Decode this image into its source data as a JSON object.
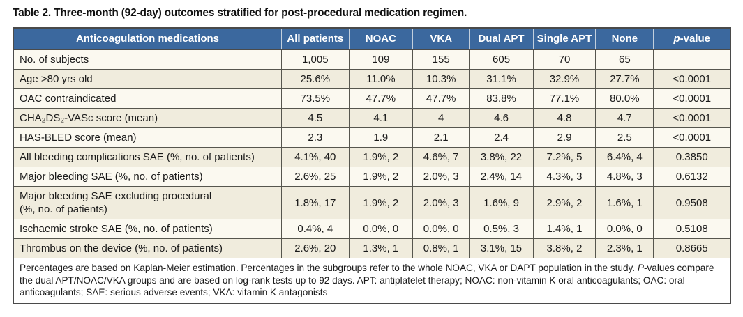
{
  "title": "Table 2. Three-month (92-day) outcomes stratified for post-procedural medication regimen.",
  "colors": {
    "header_bg": "#3b689e",
    "header_text": "#ffffff",
    "row_light": "#fbf9f0",
    "row_beige": "#f0ecdd",
    "border_dark": "#4a4a4a",
    "border_mid": "#56564e"
  },
  "table": {
    "columns": [
      {
        "label": "Anticoagulation medications"
      },
      {
        "label": "All patients"
      },
      {
        "label": "NOAC"
      },
      {
        "label": "VKA"
      },
      {
        "label": "Dual APT"
      },
      {
        "label": "Single APT"
      },
      {
        "label": "None"
      },
      {
        "label": "p-value",
        "italic_first": true
      }
    ],
    "rows": [
      {
        "label": "No. of subjects",
        "values": [
          "1,005",
          "109",
          "155",
          "605",
          "70",
          "65",
          ""
        ]
      },
      {
        "label": "Age >80 yrs old",
        "values": [
          "25.6%",
          "11.0%",
          "10.3%",
          "31.1%",
          "32.9%",
          "27.7%",
          "<0.0001"
        ]
      },
      {
        "label": "OAC contraindicated",
        "values": [
          "73.5%",
          "47.7%",
          "47.7%",
          "83.8%",
          "77.1%",
          "80.0%",
          "<0.0001"
        ]
      },
      {
        "label": "CHA₂DS₂-VASc score (mean)",
        "values": [
          "4.5",
          "4.1",
          "4",
          "4.6",
          "4.8",
          "4.7",
          "<0.0001"
        ]
      },
      {
        "label": "HAS-BLED score (mean)",
        "values": [
          "2.3",
          "1.9",
          "2.1",
          "2.4",
          "2.9",
          "2.5",
          "<0.0001"
        ]
      },
      {
        "label": "All bleeding complications SAE (%, no. of patients)",
        "values": [
          "4.1%, 40",
          "1.9%, 2",
          "4.6%, 7",
          "3.8%, 22",
          "7.2%, 5",
          "6.4%, 4",
          "0.3850"
        ]
      },
      {
        "label": "Major bleeding SAE (%, no. of patients)",
        "values": [
          "2.6%, 25",
          "1.9%, 2",
          "2.0%, 3",
          "2.4%, 14",
          "4.3%, 3",
          "4.8%, 3",
          "0.6132"
        ]
      },
      {
        "label": "Major bleeding SAE excluding procedural\n(%, no. of patients)",
        "values": [
          "1.8%, 17",
          "1.9%, 2",
          "2.0%, 3",
          "1.6%, 9",
          "2.9%, 2",
          "1.6%, 1",
          "0.9508"
        ]
      },
      {
        "label": "Ischaemic stroke SAE (%, no. of patients)",
        "values": [
          "0.4%, 4",
          "0.0%, 0",
          "0.0%, 0",
          "0.5%, 3",
          "1.4%, 1",
          "0.0%, 0",
          "0.5108"
        ]
      },
      {
        "label": "Thrombus on the device (%, no. of patients)",
        "values": [
          "2.6%, 20",
          "1.3%, 1",
          "0.8%, 1",
          "3.1%, 15",
          "3.8%, 2",
          "2.3%, 1",
          "0.8665"
        ]
      }
    ]
  },
  "footnote": {
    "segments": [
      {
        "text": "Percentages are based on Kaplan-Meier estimation. Percentages in the subgroups refer to the whole NOAC, VKA or DAPT population in the study. ",
        "italic": false
      },
      {
        "text": "P",
        "italic": true
      },
      {
        "text": "-values compare the dual APT/NOAC/VKA groups and are based on log-rank tests up to 92 days. APT: antiplatelet therapy; NOAC: non-vitamin K oral anticoagulants; OAC: oral anticoagulants; SAE: serious adverse events; VKA: vitamin K antagonists",
        "italic": false
      }
    ]
  }
}
